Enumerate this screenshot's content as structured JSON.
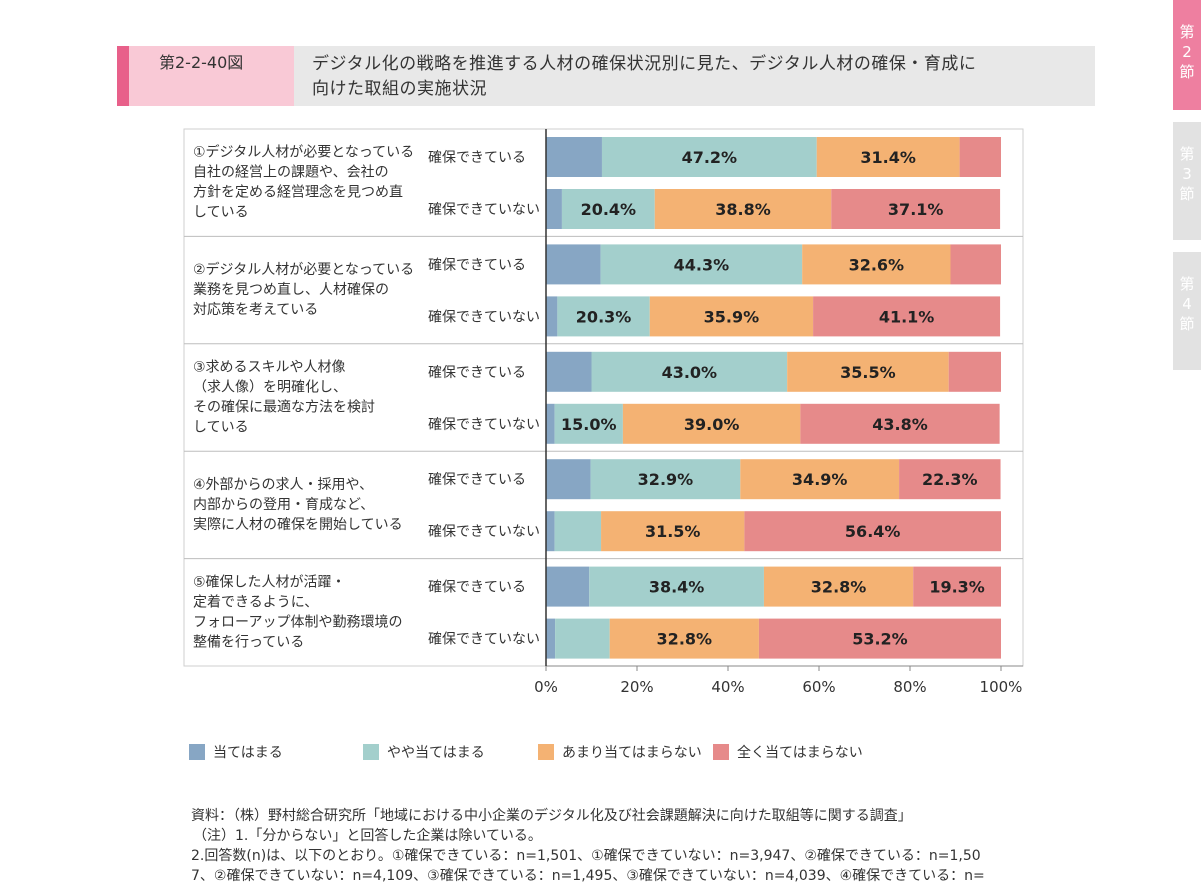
{
  "header": {
    "fig_number": "第2-2-40図",
    "title_line1": "デジタル化の戦略を推進する人材の確保状況別に見た、デジタル人材の確保・育成に",
    "title_line2": "向けた取組の実施状況"
  },
  "side_tabs": [
    {
      "chars": [
        "第",
        "2",
        "節"
      ],
      "active": true
    },
    {
      "chars": [
        "第",
        "3",
        "節"
      ],
      "active": false
    },
    {
      "chars": [
        "第",
        "4",
        "節"
      ],
      "active": false
    }
  ],
  "colors": {
    "atehamaru": "#87a6c4",
    "yaya": "#a3cfcc",
    "amari": "#f4b273",
    "mattaku": "#e68a8a",
    "accent": "#e8608a"
  },
  "chart_data": {
    "type": "bar",
    "orientation": "horizontal",
    "stacked": "percent",
    "groups": [
      {
        "label": [
          "①デジタル人材が必要となっている",
          "自社の経営上の課題や、会社の",
          "方針を定める経営理念を見つめ直",
          "している"
        ]
      },
      {
        "label": [
          "②デジタル人材が必要となっている",
          "業務を見つめ直し、人材確保の",
          "対応策を考えている"
        ]
      },
      {
        "label": [
          "③求めるスキルや人材像",
          "（求人像）を明確化し、",
          "その確保に最適な方法を検討",
          "している"
        ]
      },
      {
        "label": [
          "④外部からの求人・採用や、",
          "内部からの登用・育成など、",
          "実際に人材の確保を開始している"
        ]
      },
      {
        "label": [
          "⑤確保した人材が活躍・",
          "定着できるように、",
          "フォローアップ体制や勤務環境の",
          "整備を行っている"
        ]
      }
    ],
    "sub_labels": [
      "確保できている",
      "確保できていない"
    ],
    "series": [
      {
        "name": "当てはまる",
        "color": "#87a6c4",
        "values": [
          12.3,
          3.5,
          12.0,
          2.5,
          10.0,
          1.9,
          9.8,
          1.9,
          9.5,
          2.0
        ]
      },
      {
        "name": "やや当てはまる",
        "color": "#a3cfcc",
        "values": [
          47.2,
          20.4,
          44.3,
          20.3,
          43.0,
          15.0,
          32.9,
          10.2,
          38.4,
          12.0
        ]
      },
      {
        "name": "あまり当てはまらない",
        "color": "#f4b273",
        "values": [
          31.4,
          38.8,
          32.6,
          35.9,
          35.5,
          39.0,
          34.9,
          31.5,
          32.8,
          32.8
        ]
      },
      {
        "name": "全く当てはまらない",
        "color": "#e68a8a",
        "values": [
          9.1,
          37.1,
          11.1,
          41.1,
          11.5,
          43.8,
          22.3,
          56.4,
          19.3,
          53.2
        ]
      }
    ],
    "data_labels": [
      [
        "",
        "47.2%",
        "31.4%",
        ""
      ],
      [
        "",
        "20.4%",
        "38.8%",
        "37.1%"
      ],
      [
        "",
        "44.3%",
        "32.6%",
        ""
      ],
      [
        "",
        "20.3%",
        "35.9%",
        "41.1%"
      ],
      [
        "",
        "43.0%",
        "35.5%",
        ""
      ],
      [
        "",
        "15.0%",
        "39.0%",
        "43.8%"
      ],
      [
        "",
        "32.9%",
        "34.9%",
        "22.3%"
      ],
      [
        "",
        "",
        "31.5%",
        "56.4%"
      ],
      [
        "",
        "38.4%",
        "32.8%",
        "19.3%"
      ],
      [
        "",
        "",
        "32.8%",
        "53.2%"
      ]
    ],
    "x_ticks": [
      "0%",
      "20%",
      "40%",
      "60%",
      "80%",
      "100%"
    ],
    "xlim": [
      0,
      100
    ],
    "legend_position": "bottom"
  },
  "legend": [
    "当てはまる",
    "やや当てはまる",
    "あまり当てはまらない",
    "全く当てはまらない"
  ],
  "notes": {
    "source": "資料：（株）野村総合研究所「地域における中小企業のデジタル化及び社会課題解決に向けた取組等に関する調査」",
    "note1": "（注）1.「分からない」と回答した企業は除いている。",
    "note2": "2.回答数(n)は、以下のとおり。①確保できている：n=1,501、①確保できていない：n=3,947、②確保できている：n=1,50",
    "note3": "7、②確保できていない：n=4,109、③確保できている：n=1,495、③確保できていない：n=4,039、④確保できている：n="
  }
}
